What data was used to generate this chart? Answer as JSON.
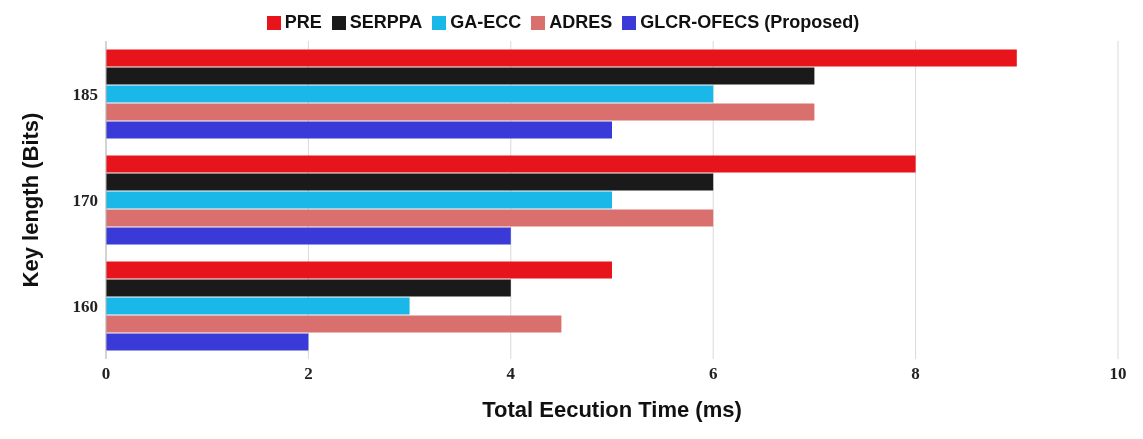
{
  "chart_data": {
    "type": "bar",
    "orientation": "horizontal",
    "xlabel": "Total Eecution Time (ms)",
    "ylabel": "Key length (Bits)",
    "categories": [
      "185",
      "170",
      "160"
    ],
    "series": [
      {
        "name": "PRE",
        "color": "#e8141c",
        "values": [
          9,
          8,
          5
        ]
      },
      {
        "name": "SERPPA",
        "color": "#1a1a1a",
        "values": [
          7,
          6,
          4
        ]
      },
      {
        "name": "GA-ECC",
        "color": "#1ab8e8",
        "values": [
          6,
          5,
          3
        ]
      },
      {
        "name": "ADRES",
        "color": "#d9706e",
        "values": [
          7,
          6,
          4.5
        ]
      },
      {
        "name": "GLCR-OFECS (Proposed)",
        "color": "#3a3ad8",
        "values": [
          5,
          4,
          2
        ]
      }
    ],
    "xlim": [
      0,
      10
    ],
    "xticks": [
      0,
      2,
      4,
      6,
      8,
      10
    ],
    "grid": "x",
    "legend": "top"
  }
}
